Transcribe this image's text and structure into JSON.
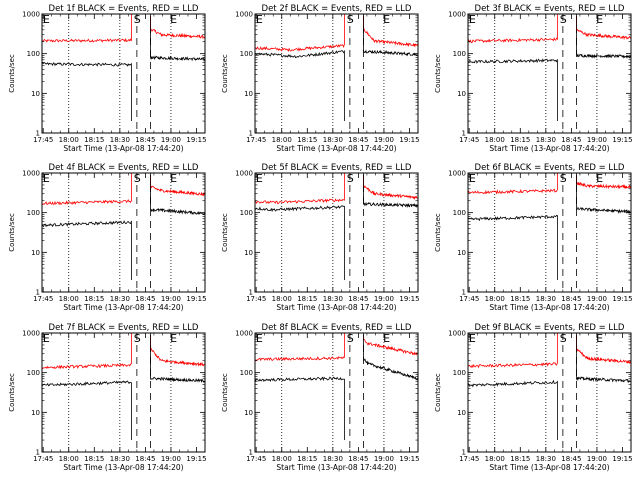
{
  "chart_data": [
    {
      "type": "line",
      "title": "Det 1f BLACK = Events, RED = LLD",
      "xlabel": "Start Time (13-Apr-08 17:44:20)",
      "ylabel": "Counts/sec",
      "x_ticks": [
        "17:45",
        "18:00",
        "18:15",
        "18:30",
        "18:45",
        "19:00",
        "19:15"
      ],
      "y_ticks": [
        "1",
        "10",
        "100",
        "1000"
      ],
      "yscale": "log",
      "ylim": [
        1,
        1000
      ],
      "xlim_minutes": [
        0,
        95.7
      ],
      "dotted_lines_minutes": [
        15.7,
        45.7,
        75.7
      ],
      "dashed_lines_minutes": [
        55.7,
        63.7
      ],
      "annotations": [
        "E",
        "S",
        "E"
      ],
      "series": [
        {
          "color": "#ff0000",
          "segments": [
            {
              "x": [
                0,
                52.5
              ],
              "y": [
                210,
                218
              ]
            },
            {
              "x": [
                63.7,
                70,
                95.7
              ],
              "y": [
                420,
                300,
                265
              ]
            }
          ]
        },
        {
          "color": "#000000",
          "segments": [
            {
              "x": [
                0,
                52.5
              ],
              "y": [
                55,
                52
              ]
            },
            {
              "x": [
                63.7,
                95.7
              ],
              "y": [
                80,
                72
              ]
            }
          ]
        }
      ]
    },
    {
      "type": "line",
      "title": "Det 2f BLACK = Events, RED = LLD",
      "xlabel": "Start Time (13-Apr-08 17:44:20)",
      "ylabel": "Counts/sec",
      "x_ticks": [
        "17:45",
        "18:00",
        "18:15",
        "18:30",
        "18:45",
        "19:00",
        "19:15"
      ],
      "y_ticks": [
        "1",
        "10",
        "100",
        "1000"
      ],
      "yscale": "log",
      "ylim": [
        1,
        1000
      ],
      "xlim_minutes": [
        0,
        95.7
      ],
      "dotted_lines_minutes": [
        15.7,
        45.7,
        75.7
      ],
      "dashed_lines_minutes": [
        55.7,
        63.7
      ],
      "annotations": [
        "E",
        "S",
        "E"
      ],
      "series": [
        {
          "color": "#ff0000",
          "segments": [
            {
              "x": [
                0,
                20,
                52.5
              ],
              "y": [
                140,
                125,
                160
              ]
            },
            {
              "x": [
                63.7,
                70,
                95.7
              ],
              "y": [
                420,
                210,
                160
              ]
            }
          ]
        },
        {
          "color": "#000000",
          "segments": [
            {
              "x": [
                0,
                25,
                52.5
              ],
              "y": [
                100,
                85,
                115
              ]
            },
            {
              "x": [
                63.7,
                95.7
              ],
              "y": [
                115,
                95
              ]
            }
          ]
        }
      ]
    },
    {
      "type": "line",
      "title": "Det 3f BLACK = Events, RED = LLD",
      "xlabel": "Start Time (13-Apr-08 17:44:20)",
      "ylabel": "Counts/sec",
      "x_ticks": [
        "17:45",
        "18:00",
        "18:15",
        "18:30",
        "18:45",
        "19:00",
        "19:15"
      ],
      "y_ticks": [
        "1",
        "10",
        "100",
        "1000"
      ],
      "yscale": "log",
      "ylim": [
        1,
        1000
      ],
      "xlim_minutes": [
        0,
        95.7
      ],
      "dotted_lines_minutes": [
        15.7,
        45.7,
        75.7
      ],
      "dashed_lines_minutes": [
        55.7,
        63.7
      ],
      "annotations": [
        "E",
        "S",
        "E"
      ],
      "series": [
        {
          "color": "#ff0000",
          "segments": [
            {
              "x": [
                0,
                52.5
              ],
              "y": [
                205,
                230
              ]
            },
            {
              "x": [
                63.7,
                70,
                95.7
              ],
              "y": [
                400,
                300,
                250
              ]
            }
          ]
        },
        {
          "color": "#000000",
          "segments": [
            {
              "x": [
                0,
                52.5
              ],
              "y": [
                62,
                68
              ]
            },
            {
              "x": [
                63.7,
                95.7
              ],
              "y": [
                90,
                85
              ]
            }
          ]
        }
      ]
    },
    {
      "type": "line",
      "title": "Det 4f BLACK = Events, RED = LLD",
      "xlabel": "Start Time (13-Apr-08 17:44:20)",
      "ylabel": "Counts/sec",
      "x_ticks": [
        "17:45",
        "18:00",
        "18:15",
        "18:30",
        "18:45",
        "19:00",
        "19:15"
      ],
      "y_ticks": [
        "1",
        "10",
        "100",
        "1000"
      ],
      "yscale": "log",
      "ylim": [
        1,
        1000
      ],
      "xlim_minutes": [
        0,
        95.7
      ],
      "dotted_lines_minutes": [
        15.7,
        45.7,
        75.7
      ],
      "dashed_lines_minutes": [
        55.7,
        63.7
      ],
      "annotations": [
        "E",
        "S",
        "E"
      ],
      "series": [
        {
          "color": "#ff0000",
          "segments": [
            {
              "x": [
                0,
                52.5
              ],
              "y": [
                170,
                195
              ]
            },
            {
              "x": [
                63.7,
                70,
                95.7
              ],
              "y": [
                450,
                360,
                290
              ]
            }
          ]
        },
        {
          "color": "#000000",
          "segments": [
            {
              "x": [
                0,
                52.5
              ],
              "y": [
                48,
                58
              ]
            },
            {
              "x": [
                63.7,
                95.7
              ],
              "y": [
                120,
                95
              ]
            }
          ]
        }
      ]
    },
    {
      "type": "line",
      "title": "Det 5f BLACK = Events, RED = LLD",
      "xlabel": "Start Time (13-Apr-08 17:44:20)",
      "ylabel": "Counts/sec",
      "x_ticks": [
        "17:45",
        "18:00",
        "18:15",
        "18:30",
        "18:45",
        "19:00",
        "19:15"
      ],
      "y_ticks": [
        "1",
        "10",
        "100",
        "1000"
      ],
      "yscale": "log",
      "ylim": [
        1,
        1000
      ],
      "xlim_minutes": [
        0,
        95.7
      ],
      "dotted_lines_minutes": [
        15.7,
        45.7,
        75.7
      ],
      "dashed_lines_minutes": [
        55.7,
        63.7
      ],
      "annotations": [
        "E",
        "S",
        "E"
      ],
      "series": [
        {
          "color": "#ff0000",
          "segments": [
            {
              "x": [
                0,
                10,
                52.5
              ],
              "y": [
                190,
                180,
                210
              ]
            },
            {
              "x": [
                63.7,
                70,
                95.7
              ],
              "y": [
                480,
                300,
                240
              ]
            }
          ]
        },
        {
          "color": "#000000",
          "segments": [
            {
              "x": [
                0,
                10,
                52.5
              ],
              "y": [
                130,
                118,
                140
              ]
            },
            {
              "x": [
                63.7,
                95.7
              ],
              "y": [
                165,
                150
              ]
            }
          ]
        }
      ]
    },
    {
      "type": "line",
      "title": "Det 6f BLACK = Events, RED = LLD",
      "xlabel": "Start Time (13-Apr-08 17:44:20)",
      "ylabel": "Counts/sec",
      "x_ticks": [
        "17:45",
        "18:00",
        "18:15",
        "18:30",
        "18:45",
        "19:00",
        "19:15"
      ],
      "y_ticks": [
        "1",
        "10",
        "100",
        "1000"
      ],
      "yscale": "log",
      "ylim": [
        1,
        1000
      ],
      "xlim_minutes": [
        0,
        95.7
      ],
      "dotted_lines_minutes": [
        15.7,
        45.7,
        75.7
      ],
      "dashed_lines_minutes": [
        55.7,
        63.7
      ],
      "annotations": [
        "E",
        "S",
        "E"
      ],
      "series": [
        {
          "color": "#ff0000",
          "segments": [
            {
              "x": [
                0,
                52.5
              ],
              "y": [
                320,
                360
              ]
            },
            {
              "x": [
                63.7,
                70,
                95.7
              ],
              "y": [
                560,
                470,
                440
              ]
            }
          ]
        },
        {
          "color": "#000000",
          "segments": [
            {
              "x": [
                0,
                52.5
              ],
              "y": [
                68,
                80
              ]
            },
            {
              "x": [
                63.7,
                95.7
              ],
              "y": [
                125,
                105
              ]
            }
          ]
        }
      ]
    },
    {
      "type": "line",
      "title": "Det 7f BLACK = Events, RED = LLD",
      "xlabel": "Start Time (13-Apr-08 17:44:20)",
      "ylabel": "Counts/sec",
      "x_ticks": [
        "17:45",
        "18:00",
        "18:15",
        "18:30",
        "18:45",
        "19:00",
        "19:15"
      ],
      "y_ticks": [
        "1",
        "10",
        "100",
        "1000"
      ],
      "yscale": "log",
      "ylim": [
        1,
        1000
      ],
      "xlim_minutes": [
        0,
        95.7
      ],
      "dotted_lines_minutes": [
        15.7,
        45.7,
        75.7
      ],
      "dashed_lines_minutes": [
        55.7,
        63.7
      ],
      "annotations": [
        "E",
        "S",
        "E"
      ],
      "series": [
        {
          "color": "#ff0000",
          "segments": [
            {
              "x": [
                0,
                52.5
              ],
              "y": [
                135,
                155
              ]
            },
            {
              "x": [
                63.7,
                70,
                95.7
              ],
              "y": [
                400,
                200,
                160
              ]
            }
          ]
        },
        {
          "color": "#000000",
          "segments": [
            {
              "x": [
                0,
                52.5
              ],
              "y": [
                48,
                58
              ]
            },
            {
              "x": [
                63.7,
                95.7
              ],
              "y": [
                72,
                62
              ]
            }
          ]
        }
      ]
    },
    {
      "type": "line",
      "title": "Det 8f BLACK = Events, RED = LLD",
      "xlabel": "Start Time (13-Apr-08 17:44:20)",
      "ylabel": "Counts/sec",
      "x_ticks": [
        "17:45",
        "18:00",
        "18:15",
        "18:30",
        "18:45",
        "19:00",
        "19:15"
      ],
      "y_ticks": [
        "1",
        "10",
        "100",
        "1000"
      ],
      "yscale": "log",
      "ylim": [
        1,
        1000
      ],
      "xlim_minutes": [
        0,
        95.7
      ],
      "dotted_lines_minutes": [
        15.7,
        45.7,
        75.7
      ],
      "dashed_lines_minutes": [
        55.7,
        63.7
      ],
      "annotations": [
        "E",
        "S",
        "E"
      ],
      "series": [
        {
          "color": "#ff0000",
          "segments": [
            {
              "x": [
                0,
                52.5
              ],
              "y": [
                215,
                235
              ]
            },
            {
              "x": [
                63.7,
                66,
                95.7
              ],
              "y": [
                680,
                550,
                290
              ]
            }
          ]
        },
        {
          "color": "#000000",
          "segments": [
            {
              "x": [
                0,
                52.5
              ],
              "y": [
                65,
                72
              ]
            },
            {
              "x": [
                63.7,
                66,
                95.7
              ],
              "y": [
                230,
                170,
                70
              ]
            }
          ]
        }
      ]
    },
    {
      "type": "line",
      "title": "Det 9f BLACK = Events, RED = LLD",
      "xlabel": "Start Time (13-Apr-08 17:44:20)",
      "ylabel": "Counts/sec",
      "x_ticks": [
        "17:45",
        "18:00",
        "18:15",
        "18:30",
        "18:45",
        "19:00",
        "19:15"
      ],
      "y_ticks": [
        "1",
        "10",
        "100",
        "1000"
      ],
      "yscale": "log",
      "ylim": [
        1,
        1000
      ],
      "xlim_minutes": [
        0,
        95.7
      ],
      "dotted_lines_minutes": [
        15.7,
        45.7,
        75.7
      ],
      "dashed_lines_minutes": [
        55.7,
        63.7
      ],
      "annotations": [
        "E",
        "S",
        "E"
      ],
      "series": [
        {
          "color": "#ff0000",
          "segments": [
            {
              "x": [
                0,
                52.5
              ],
              "y": [
                145,
                165
              ]
            },
            {
              "x": [
                63.7,
                70,
                95.7
              ],
              "y": [
                400,
                230,
                185
              ]
            }
          ]
        },
        {
          "color": "#000000",
          "segments": [
            {
              "x": [
                0,
                52.5
              ],
              "y": [
                48,
                58
              ]
            },
            {
              "x": [
                63.7,
                95.7
              ],
              "y": [
                72,
                62
              ]
            }
          ]
        }
      ]
    }
  ]
}
